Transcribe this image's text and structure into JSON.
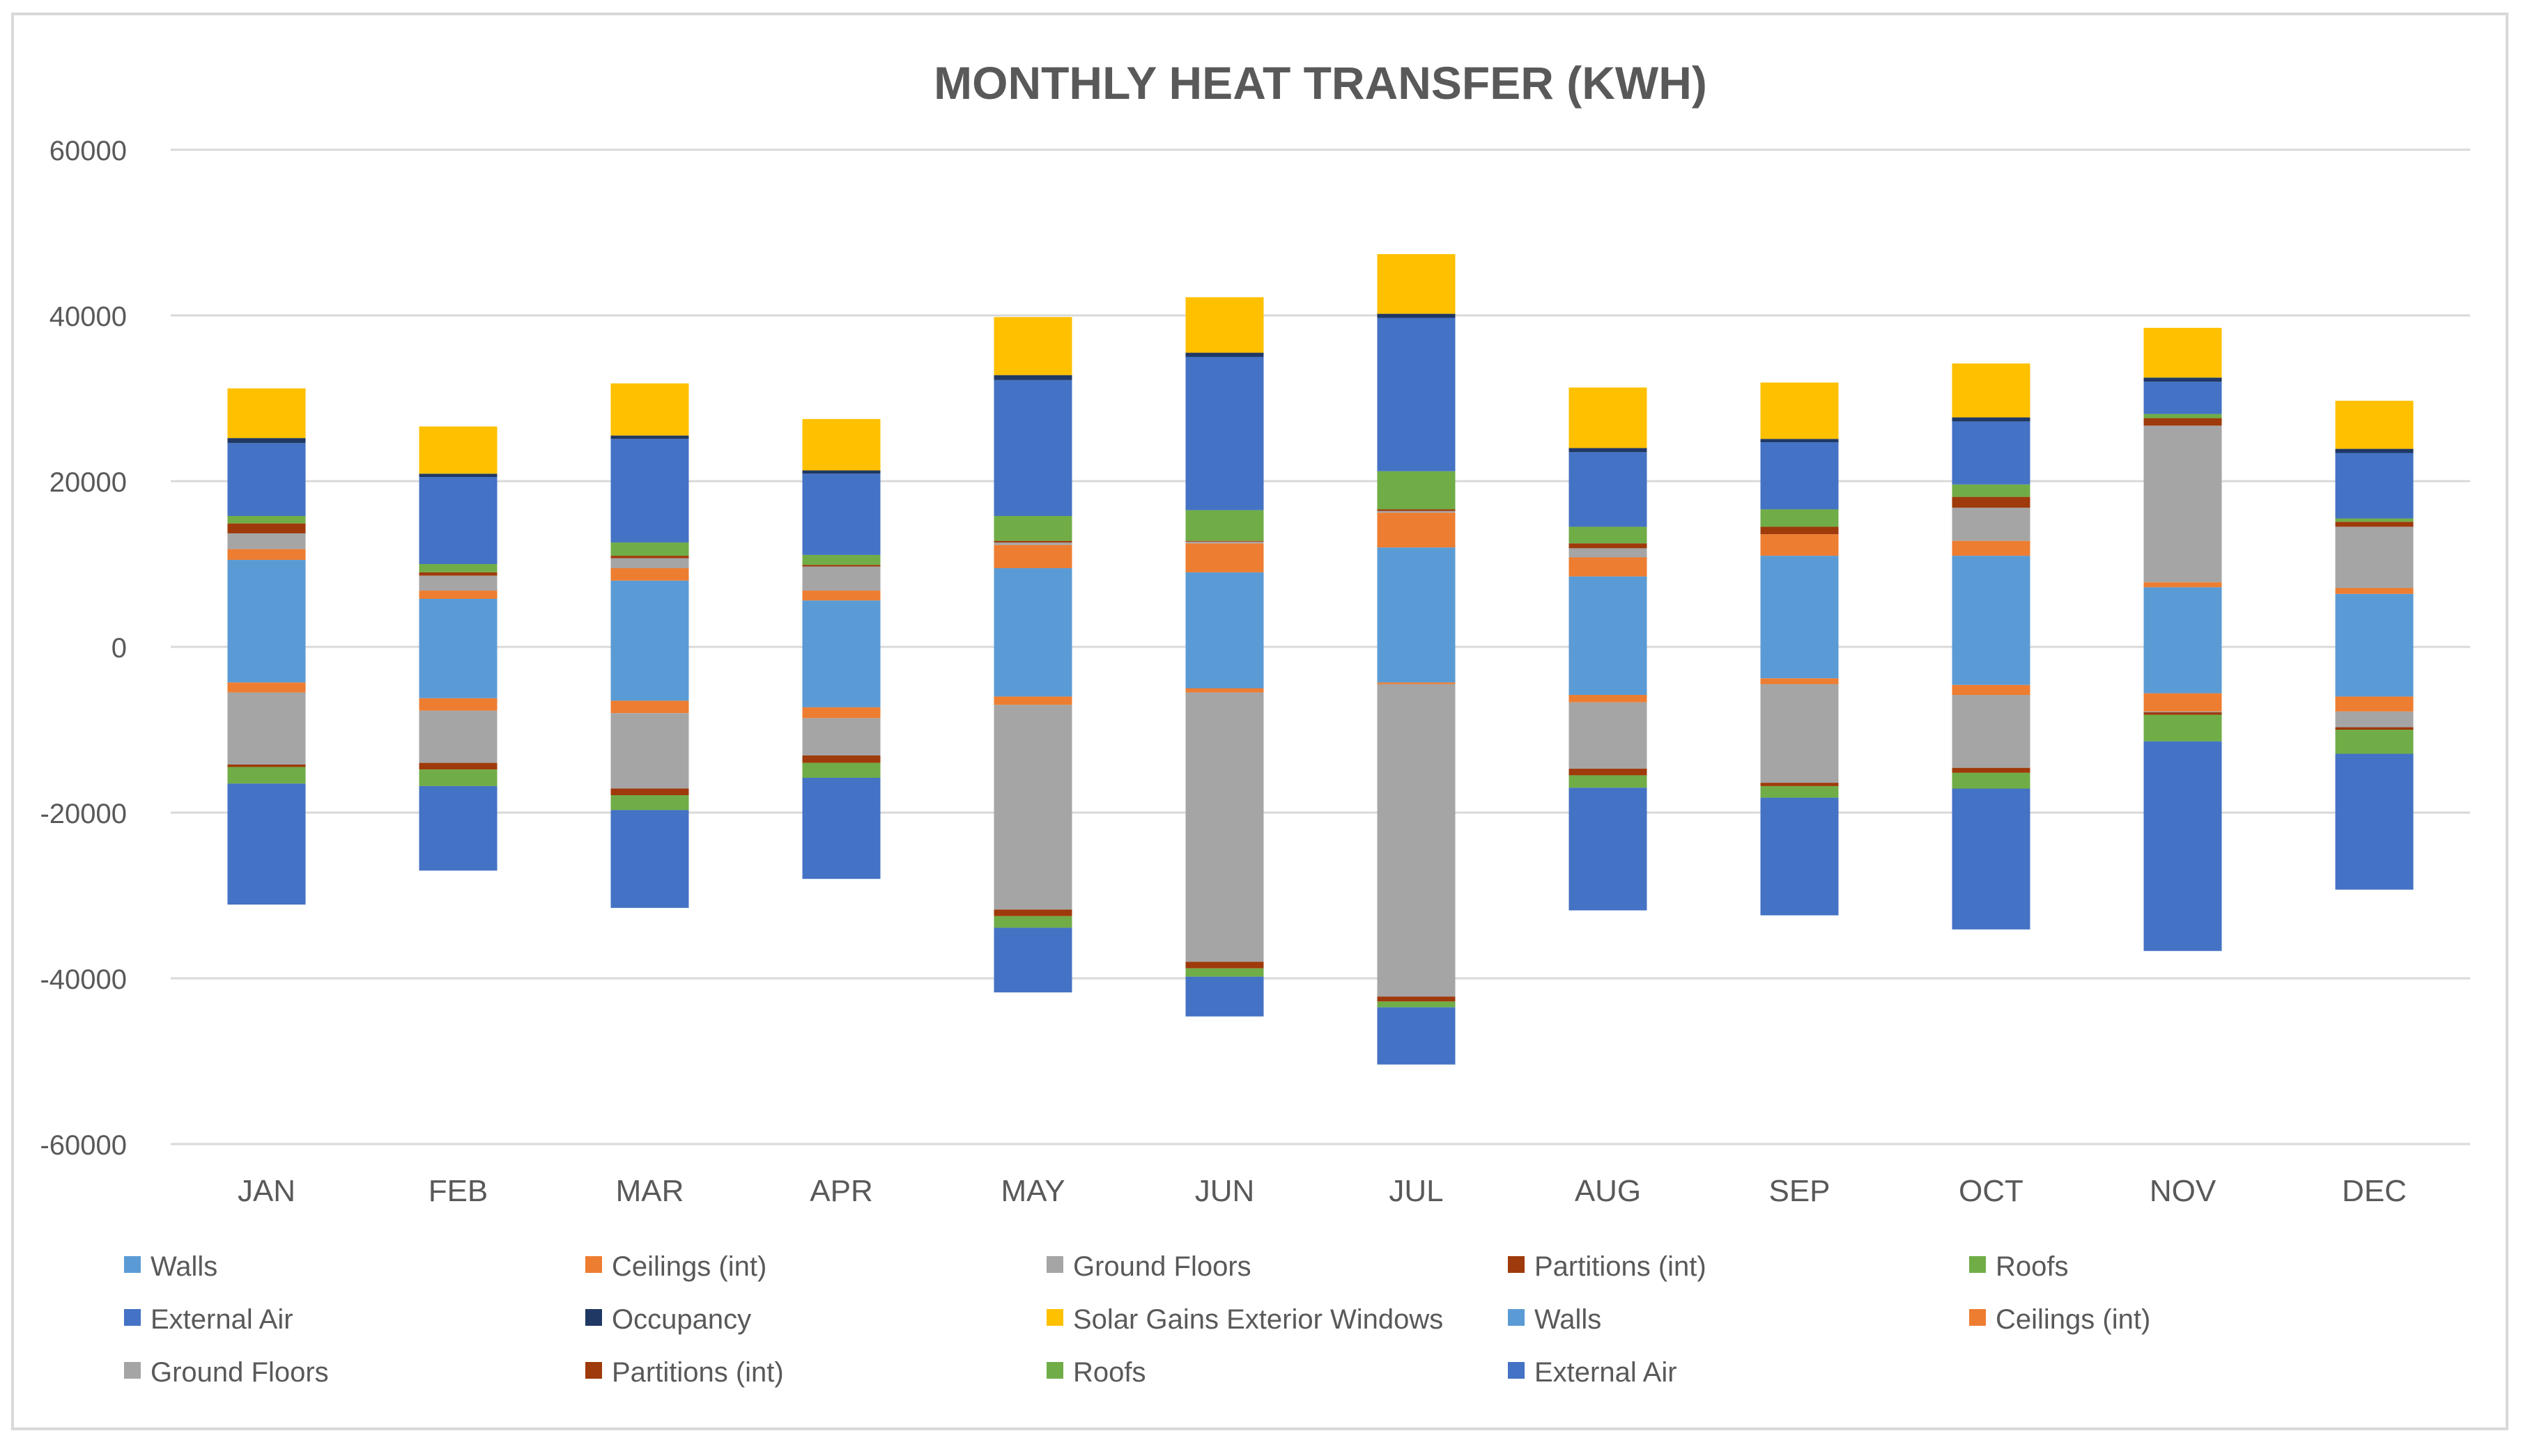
{
  "chart_data": {
    "type": "bar",
    "stacked": true,
    "title": "MONTHLY HEAT TRANSFER (KWH)",
    "xlabel": "",
    "ylabel": "",
    "ylim": [
      -60000,
      60000
    ],
    "yticks": [
      60000,
      40000,
      20000,
      0,
      -20000,
      -40000,
      -60000
    ],
    "ytick_labels": [
      "60000",
      "40000",
      "20000",
      "0",
      "-20000",
      "-40000",
      "-60000"
    ],
    "grid": true,
    "legend_position": "bottom",
    "categories": [
      "JAN",
      "FEB",
      "MAR",
      "APR",
      "MAY",
      "JUN",
      "JUL",
      "AUG",
      "SEP",
      "OCT",
      "NOV",
      "DEC"
    ],
    "series": [
      {
        "name": "Walls",
        "sign": "positive",
        "color": "#5B9BD5",
        "values": [
          10500,
          5800,
          8000,
          5600,
          9500,
          9000,
          12000,
          8500,
          11000,
          11000,
          7200,
          6400
        ]
      },
      {
        "name": "Ceilings (int)",
        "sign": "positive",
        "color": "#ED7D31",
        "values": [
          1300,
          1000,
          1500,
          1200,
          2800,
          3500,
          4200,
          2300,
          2600,
          1800,
          600,
          700
        ]
      },
      {
        "name": "Ground Floors",
        "sign": "positive",
        "color": "#A5A5A5",
        "values": [
          1900,
          1800,
          1200,
          2900,
          300,
          200,
          200,
          1100,
          0,
          4000,
          18900,
          7400
        ]
      },
      {
        "name": "Partitions (int)",
        "sign": "positive",
        "color": "#9E3A0B",
        "values": [
          1200,
          400,
          300,
          200,
          200,
          100,
          200,
          600,
          900,
          1300,
          900,
          600
        ]
      },
      {
        "name": "Roofs",
        "sign": "positive",
        "color": "#70AD47",
        "values": [
          900,
          1000,
          1600,
          1200,
          3000,
          3700,
          4600,
          2000,
          2100,
          1500,
          500,
          400
        ]
      },
      {
        "name": "External Air",
        "sign": "positive",
        "color": "#4472C4",
        "values": [
          8800,
          10500,
          12500,
          9800,
          16400,
          18500,
          18500,
          9000,
          8100,
          7600,
          3900,
          7900
        ]
      },
      {
        "name": "Occupancy",
        "sign": "positive",
        "color": "#1F3864",
        "values": [
          600,
          400,
          400,
          400,
          600,
          500,
          500,
          500,
          400,
          500,
          500,
          500
        ]
      },
      {
        "name": "Solar Gains Exterior Windows",
        "sign": "positive",
        "color": "#FFC000",
        "values": [
          6000,
          5700,
          6300,
          6200,
          7000,
          6700,
          7200,
          7300,
          6800,
          6500,
          6000,
          5800
        ]
      },
      {
        "name": "Walls",
        "sign": "negative",
        "color": "#5B9BD5",
        "values": [
          -4300,
          -6200,
          -6500,
          -7300,
          -6000,
          -5000,
          -4300,
          -5800,
          -3800,
          -4600,
          -5600,
          -6000
        ]
      },
      {
        "name": "Ceilings (int)",
        "sign": "negative",
        "color": "#ED7D31",
        "values": [
          -1200,
          -1500,
          -1500,
          -1300,
          -1000,
          -500,
          -200,
          -900,
          -700,
          -1200,
          -2200,
          -1800
        ]
      },
      {
        "name": "Ground Floors",
        "sign": "negative",
        "color": "#A5A5A5",
        "values": [
          -8700,
          -6300,
          -9100,
          -4500,
          -24700,
          -32500,
          -37700,
          -8000,
          -11900,
          -8800,
          -100,
          -1900
        ]
      },
      {
        "name": "Partitions (int)",
        "sign": "negative",
        "color": "#9E3A0B",
        "values": [
          -300,
          -800,
          -800,
          -900,
          -800,
          -800,
          -600,
          -800,
          -400,
          -600,
          -300,
          -300
        ]
      },
      {
        "name": "Roofs",
        "sign": "negative",
        "color": "#70AD47",
        "values": [
          -2000,
          -2000,
          -1800,
          -1800,
          -1400,
          -1000,
          -700,
          -1500,
          -1400,
          -1900,
          -3200,
          -2900
        ]
      },
      {
        "name": "External Air",
        "sign": "negative",
        "color": "#4472C4",
        "values": [
          -14600,
          -10200,
          -11800,
          -12200,
          -7800,
          -4800,
          -6900,
          -14800,
          -14200,
          -17000,
          -25300,
          -16400
        ]
      }
    ]
  }
}
